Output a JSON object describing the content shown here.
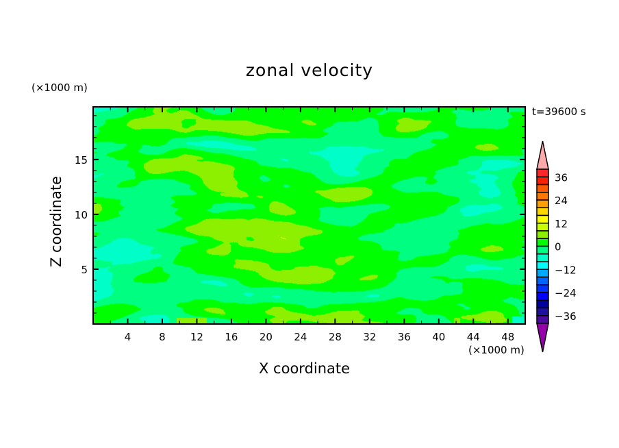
{
  "chart_data": {
    "type": "heatmap",
    "subtype": "filled-contour",
    "title": "zonal velocity",
    "xlabel": "X coordinate",
    "ylabel": "Z coordinate",
    "x_unit": "(×1000 m)",
    "y_unit": "(×1000 m)",
    "annotation": "t=39600 s",
    "xlim": [
      0,
      50
    ],
    "ylim": [
      0,
      19.8
    ],
    "x_ticks": [
      4,
      8,
      12,
      16,
      20,
      24,
      28,
      32,
      36,
      40,
      44,
      48
    ],
    "y_ticks": [
      5,
      10,
      15
    ],
    "grid": false,
    "dominant_ranges": [
      "0 to 4",
      "-4 to 0"
    ],
    "colorbar": {
      "placement": "right",
      "levels": [
        -40,
        -36,
        -32,
        -28,
        -24,
        -20,
        -16,
        -12,
        -8,
        -4,
        0,
        4,
        8,
        12,
        16,
        20,
        24,
        28,
        32,
        36,
        40
      ],
      "tick_labels": [
        "36",
        "24",
        "12",
        "0",
        "−12",
        "−24",
        "−36"
      ],
      "tick_values": [
        36,
        24,
        12,
        0,
        -12,
        -24,
        -36
      ],
      "colors_top_to_bottom": [
        "#ffaaaa",
        "#ff2828",
        "#ff2000",
        "#ff5a00",
        "#ff7800",
        "#ffa000",
        "#ffd700",
        "#ffff00",
        "#c8ff00",
        "#8cf000",
        "#00ff00",
        "#00ff80",
        "#00ffc8",
        "#00ffff",
        "#00aaff",
        "#0064ff",
        "#0032ff",
        "#0000ff",
        "#0000a0",
        "#1e10a0",
        "#4b0aa0",
        "#9600aa"
      ]
    }
  }
}
